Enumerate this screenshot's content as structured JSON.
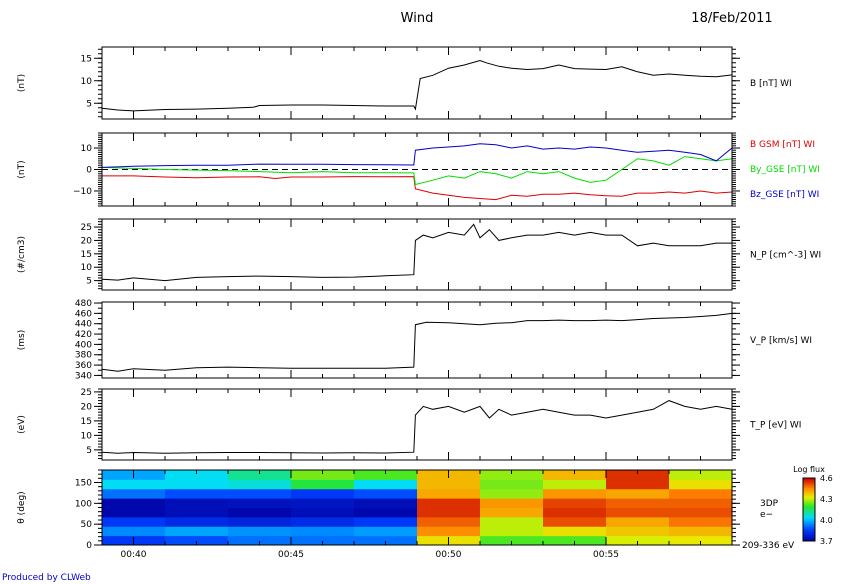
{
  "header": {
    "mission": "Wind",
    "date": "18/Feb/2011"
  },
  "footer": {
    "credit": "Produced by CLWeb"
  },
  "colors": {
    "black": "#000000",
    "red": "#dd0000",
    "green": "#00dd00",
    "blue": "#0000cc",
    "credit": "#0000cc"
  },
  "time_axis": {
    "range_min": [
      39.0,
      59.0
    ],
    "ticks": [
      {
        "t": 40,
        "label": "00:40"
      },
      {
        "t": 45,
        "label": "00:45"
      },
      {
        "t": 50,
        "label": "00:50"
      },
      {
        "t": 55,
        "label": "00:55"
      }
    ]
  },
  "chart_data": [
    {
      "type": "line",
      "id": "b",
      "ylabel": "(nT)",
      "ylim": [
        1.5,
        17.5
      ],
      "yticks": [
        5,
        10,
        15
      ],
      "series": [
        {
          "name": "B [nT] WI",
          "color": "#000000",
          "x": [
            39.0,
            39.5,
            40.0,
            41.0,
            42.0,
            43.0,
            43.8,
            44.0,
            45.0,
            46.0,
            47.0,
            48.0,
            48.9,
            48.95,
            49.1,
            49.5,
            50.0,
            50.5,
            51.0,
            51.2,
            51.6,
            52.0,
            52.5,
            53.0,
            53.5,
            54.0,
            54.5,
            55.0,
            55.5,
            56.0,
            56.5,
            57.0,
            57.5,
            58.0,
            58.5,
            59.0
          ],
          "y": [
            3.9,
            3.5,
            3.3,
            3.6,
            3.7,
            3.9,
            4.1,
            4.5,
            4.6,
            4.6,
            4.5,
            4.4,
            4.4,
            3.7,
            10.5,
            11.2,
            12.8,
            13.5,
            14.5,
            14.0,
            13.2,
            12.8,
            12.5,
            12.7,
            13.5,
            12.7,
            12.6,
            12.5,
            13.1,
            12.0,
            11.2,
            11.5,
            11.2,
            11.0,
            10.9,
            11.3
          ]
        }
      ]
    },
    {
      "type": "line",
      "id": "bcomp",
      "ylabel": "(nT)",
      "ylim": [
        -17,
        17
      ],
      "yticks": [
        -10,
        0,
        10
      ],
      "ytick_labels": [
        "−10",
        "0",
        "10"
      ],
      "reference_line": 0,
      "series": [
        {
          "name": "B GSM [nT] WI",
          "color": "#dd0000",
          "x": [
            39.0,
            40.0,
            41.0,
            42.0,
            43.0,
            44.0,
            44.5,
            45.0,
            46.0,
            47.0,
            48.0,
            48.9,
            48.95,
            49.5,
            50.0,
            50.5,
            51.0,
            51.5,
            52.0,
            52.5,
            53.0,
            53.5,
            54.0,
            54.5,
            55.0,
            55.5,
            56.0,
            56.5,
            57.0,
            57.5,
            58.0,
            58.5,
            59.0
          ],
          "y": [
            -3,
            -3,
            -3.5,
            -3.8,
            -3.5,
            -3.4,
            -4.2,
            -3.5,
            -3.5,
            -3.3,
            -3.4,
            -3.3,
            -9,
            -11,
            -12,
            -13,
            -13.5,
            -14,
            -12,
            -12.5,
            -11.5,
            -11.5,
            -11,
            -11.8,
            -12.2,
            -12.5,
            -11,
            -11,
            -10.5,
            -11,
            -10,
            -11,
            -10.5
          ]
        },
        {
          "name": "By_GSE [nT] WI",
          "color": "#00dd00",
          "x": [
            39.0,
            40.0,
            41.0,
            42.0,
            43.0,
            44.0,
            45.0,
            46.0,
            47.0,
            48.0,
            48.9,
            48.95,
            49.5,
            50.0,
            50.5,
            51.0,
            51.5,
            52.0,
            52.5,
            53.0,
            53.5,
            54.0,
            54.5,
            55.0,
            55.5,
            56.0,
            56.5,
            57.0,
            57.5,
            58.0,
            58.5,
            59.0
          ],
          "y": [
            1,
            0.5,
            0,
            -0.3,
            -0.5,
            -1,
            -1.5,
            -1,
            -1.5,
            -1.5,
            -1.6,
            -7,
            -5,
            -3,
            -4,
            -1,
            -2,
            -4,
            -1,
            -2,
            -1,
            -4,
            -6,
            -5,
            0,
            5,
            4,
            2,
            6,
            5,
            4,
            5
          ]
        },
        {
          "name": "Bz_GSE [nT] WI",
          "color": "#0000cc",
          "x": [
            39.0,
            40.0,
            41.0,
            42.0,
            43.0,
            44.0,
            45.0,
            46.0,
            47.0,
            48.0,
            48.9,
            48.95,
            49.5,
            50.0,
            50.5,
            51.0,
            51.5,
            52.0,
            52.5,
            53.0,
            53.5,
            54.0,
            54.5,
            55.0,
            55.5,
            56.0,
            56.5,
            57.0,
            57.5,
            58.0,
            58.5,
            59.0
          ],
          "y": [
            1,
            1.5,
            1.8,
            2,
            2,
            2.5,
            2.4,
            2.4,
            2.3,
            2.2,
            2.1,
            9,
            10,
            10.5,
            11,
            12,
            11.5,
            10,
            11,
            9.5,
            10,
            9.5,
            10.5,
            10,
            9,
            8,
            8.5,
            9,
            8,
            7,
            4,
            10
          ]
        }
      ]
    },
    {
      "type": "line",
      "id": "np",
      "ylabel": "(#/cm3)",
      "ylim": [
        1.5,
        28
      ],
      "yticks": [
        5,
        10,
        15,
        20,
        25
      ],
      "series": [
        {
          "name": "N_P [cm^-3] WI",
          "color": "#000000",
          "x": [
            39.0,
            39.5,
            40.0,
            41.0,
            42.0,
            43.0,
            44.0,
            45.0,
            46.0,
            47.0,
            48.0,
            48.9,
            48.95,
            49.2,
            49.5,
            50.0,
            50.5,
            50.8,
            51.0,
            51.3,
            51.6,
            52.0,
            52.5,
            53.0,
            53.5,
            54.0,
            54.5,
            55.0,
            55.5,
            56.0,
            56.5,
            57.0,
            57.5,
            58.0,
            58.5,
            59.0
          ],
          "y": [
            5.5,
            5.2,
            6,
            5,
            6.2,
            6.5,
            6.7,
            6.5,
            6.2,
            6.3,
            6.8,
            7.2,
            20,
            22,
            21,
            23,
            22,
            26,
            21,
            24,
            20,
            21,
            22,
            22,
            23,
            22,
            23,
            22,
            22,
            18,
            19,
            18,
            18,
            18,
            19,
            19
          ]
        }
      ]
    },
    {
      "type": "line",
      "id": "vp",
      "ylabel": "(ms)",
      "ylim": [
        335,
        482
      ],
      "yticks": [
        340,
        360,
        380,
        400,
        420,
        440,
        460,
        480
      ],
      "series": [
        {
          "name": "V_P [km/s] WI",
          "color": "#000000",
          "x": [
            39.0,
            39.5,
            40.0,
            41.0,
            42.0,
            43.0,
            44.0,
            45.0,
            46.0,
            47.0,
            48.0,
            48.9,
            48.95,
            49.3,
            50.0,
            50.5,
            51.0,
            51.5,
            52.0,
            52.5,
            53.0,
            53.5,
            54.0,
            54.5,
            55.0,
            55.5,
            56.0,
            56.5,
            57.0,
            57.5,
            58.0,
            58.5,
            59.0
          ],
          "y": [
            352,
            348,
            353,
            350,
            355,
            356,
            355,
            354,
            354,
            354,
            354,
            356,
            438,
            443,
            442,
            440,
            438,
            441,
            442,
            446,
            446,
            447,
            446,
            446,
            447,
            446,
            448,
            450,
            451,
            452,
            454,
            456,
            460
          ]
        }
      ]
    },
    {
      "type": "line",
      "id": "tp",
      "ylabel": "(eV)",
      "ylim": [
        1.5,
        26
      ],
      "yticks": [
        5,
        10,
        15,
        20,
        25
      ],
      "series": [
        {
          "name": "T_P [eV] WI",
          "color": "#000000",
          "x": [
            39.0,
            39.5,
            40.0,
            41.0,
            42.0,
            43.0,
            44.0,
            45.0,
            46.0,
            47.0,
            48.0,
            48.9,
            48.95,
            49.2,
            49.5,
            50.0,
            50.5,
            51.0,
            51.3,
            51.6,
            52.0,
            52.5,
            53.0,
            53.5,
            54.0,
            54.5,
            55.0,
            55.5,
            56.0,
            56.5,
            57.0,
            57.5,
            58.0,
            58.5,
            59.0
          ],
          "y": [
            4.2,
            3.8,
            4.1,
            3.8,
            4,
            4.1,
            4.1,
            4,
            3.9,
            4,
            3.9,
            4.2,
            17,
            20,
            19,
            20,
            18,
            20,
            16,
            19,
            17,
            18,
            19,
            18,
            17,
            17,
            16,
            17,
            18,
            19,
            22,
            20,
            19,
            20,
            19
          ]
        }
      ]
    },
    {
      "type": "heatmap",
      "id": "spec",
      "ylabel": "θ (deg)",
      "ylim": [
        0,
        180
      ],
      "yticks": [
        0,
        50,
        100,
        150
      ],
      "x_edges": [
        39,
        41,
        43,
        45,
        47,
        49,
        51,
        53,
        55,
        57,
        59
      ],
      "y_edges": [
        0,
        22.5,
        45,
        67.5,
        90,
        112.5,
        135,
        157.5,
        180
      ],
      "colorbar": {
        "title": "Log flux",
        "range": [
          3.7,
          4.6
        ],
        "ticks": [
          "4.6",
          "4.3",
          "4.0",
          "3.7"
        ],
        "tick_values": [
          4.6,
          4.3,
          4.0,
          3.7
        ]
      },
      "right_labels": [
        "3DP",
        "e−"
      ],
      "energy_label": "209-336 eV",
      "z": [
        [
          3.85,
          3.88,
          3.92,
          3.92,
          3.92,
          4.35,
          4.22,
          4.22,
          4.32,
          4.34
        ],
        [
          3.95,
          3.98,
          3.96,
          3.95,
          3.97,
          4.45,
          4.3,
          4.35,
          4.38,
          4.4
        ],
        [
          3.85,
          3.82,
          3.8,
          3.82,
          3.85,
          4.5,
          4.3,
          4.52,
          4.42,
          4.48
        ],
        [
          3.72,
          3.74,
          3.72,
          3.74,
          3.72,
          4.55,
          4.42,
          4.55,
          4.52,
          4.52
        ],
        [
          3.72,
          3.74,
          3.75,
          3.76,
          3.74,
          4.55,
          4.44,
          4.53,
          4.5,
          4.5
        ],
        [
          3.92,
          3.88,
          3.88,
          3.85,
          3.88,
          4.42,
          4.27,
          4.44,
          4.42,
          4.47
        ],
        [
          4.05,
          4.05,
          4.07,
          4.18,
          4.05,
          4.4,
          4.25,
          4.3,
          4.55,
          4.35
        ],
        [
          3.98,
          4.05,
          4.12,
          4.25,
          4.22,
          4.4,
          4.27,
          4.4,
          4.55,
          4.3
        ]
      ]
    }
  ]
}
